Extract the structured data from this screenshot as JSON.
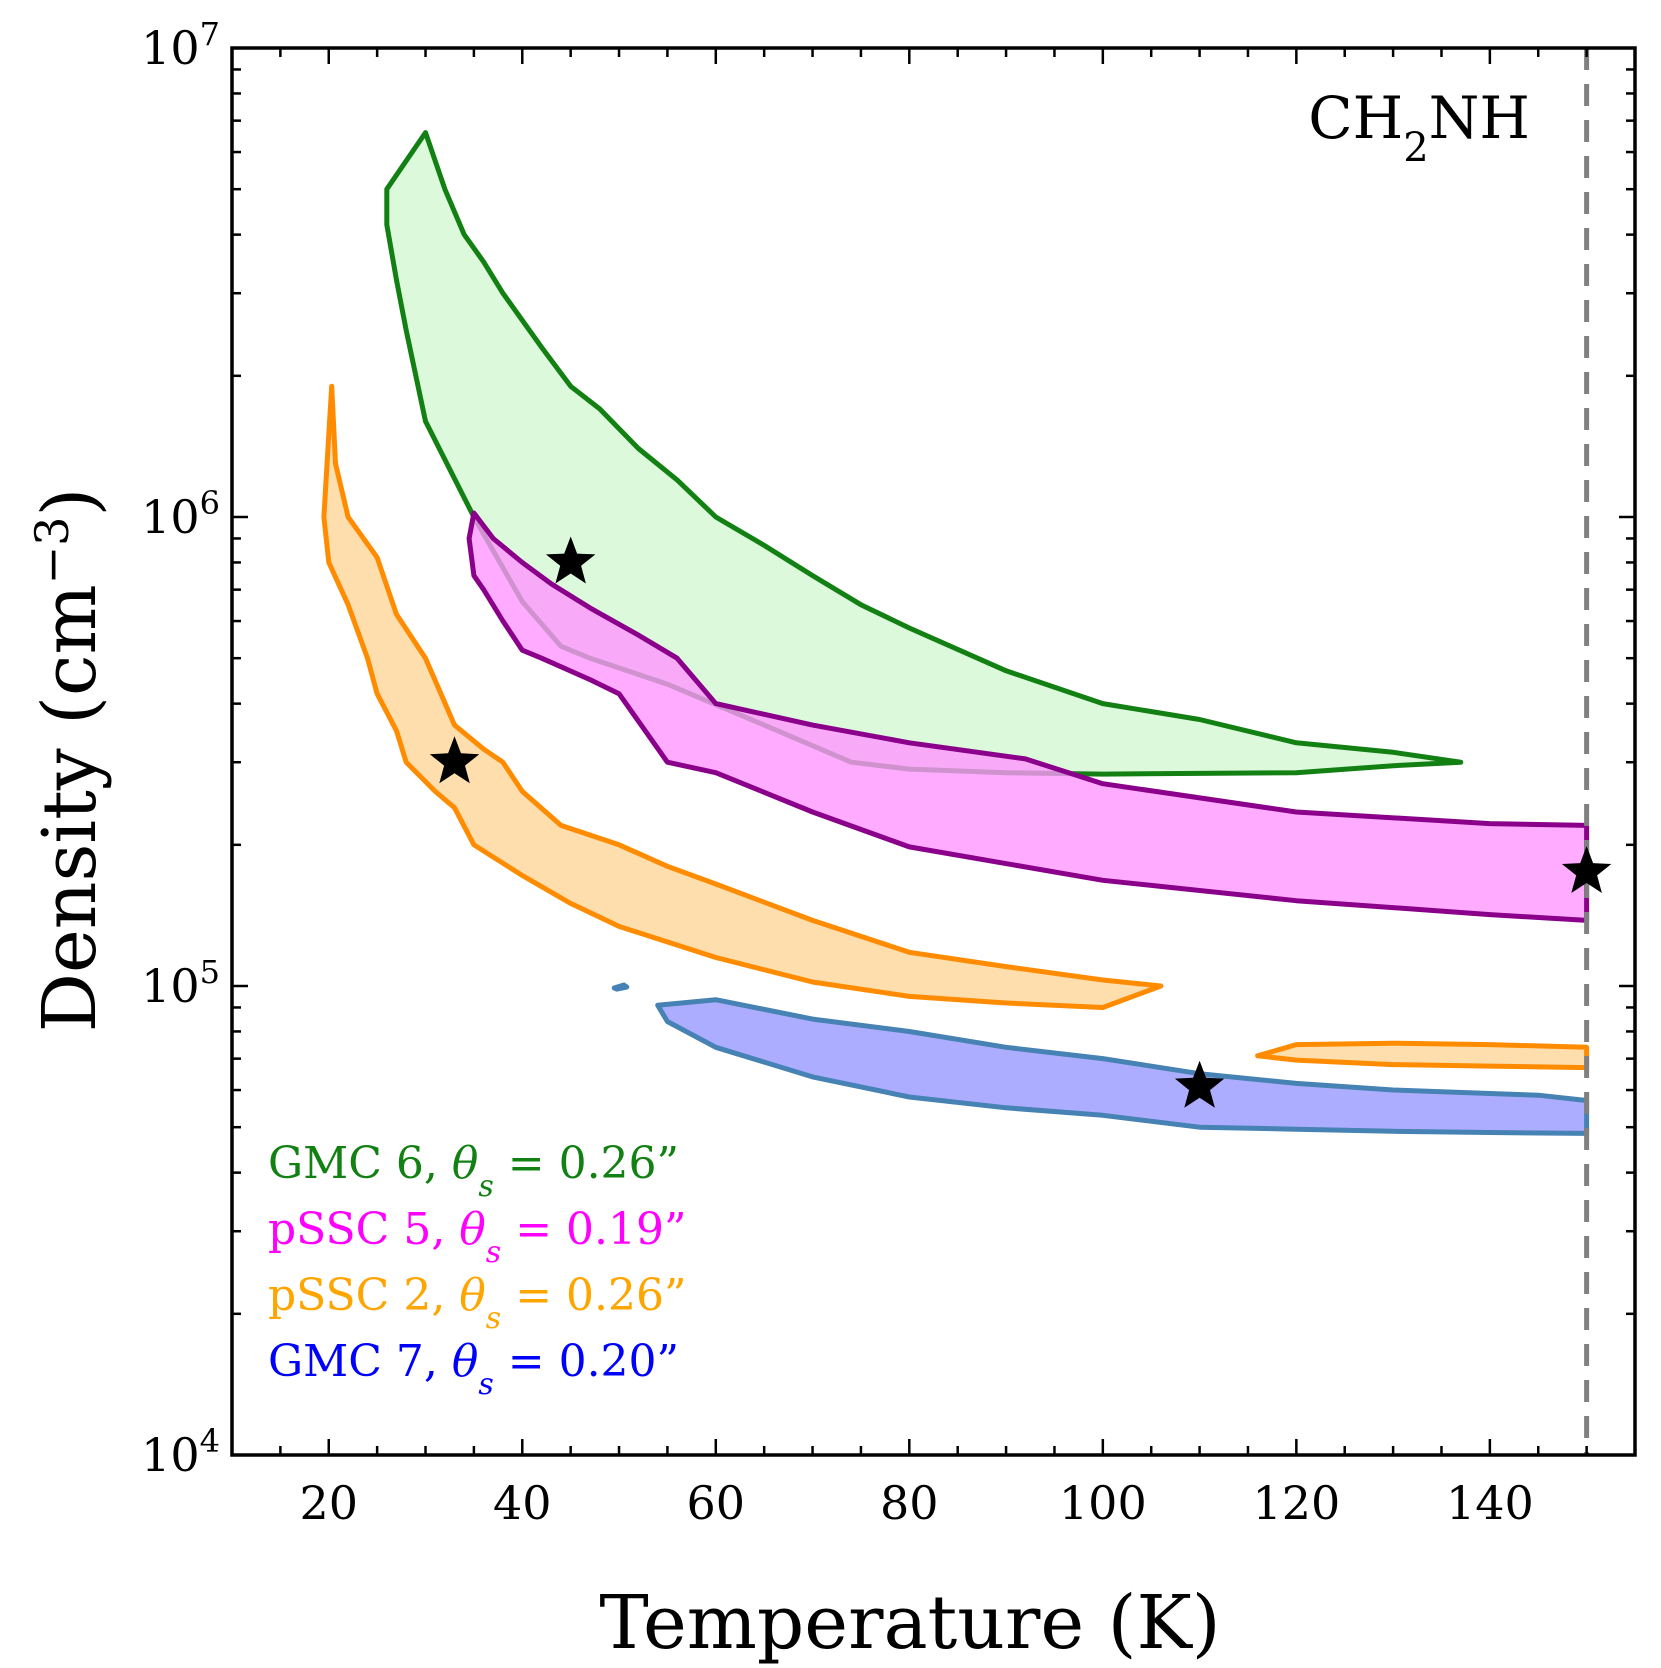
{
  "chart_data": {
    "type": "area",
    "xlabel": "Temperature (K)",
    "ylabel": "Density (cm",
    "ylabel_exp": "−3",
    "ylabel_close": ")",
    "annotation": {
      "base": "CH",
      "sub": "2",
      "rest": "NH"
    },
    "xlim": [
      10,
      155
    ],
    "ylim": [
      10000,
      10000000
    ],
    "yscale": "log",
    "x_ticks": [
      20,
      40,
      60,
      80,
      100,
      120,
      140
    ],
    "x_tick_labels": [
      "20",
      "40",
      "60",
      "80",
      "100",
      "120",
      "140"
    ],
    "y_ticks": [
      {
        "value": 10000,
        "base": "10",
        "exp": "4"
      },
      {
        "value": 100000,
        "base": "10",
        "exp": "5"
      },
      {
        "value": 1000000,
        "base": "10",
        "exp": "6"
      },
      {
        "value": 10000000,
        "base": "10",
        "exp": "7"
      }
    ],
    "vline": {
      "x": 150,
      "color": "#808080",
      "style": "dashed"
    },
    "series": [
      {
        "name": "GMC 6",
        "theta": "θs = 0.26”",
        "stroke": "#138013",
        "fill": "#d3f7d3",
        "stars": [
          [
            45,
            800000
          ]
        ],
        "regions": [
          [
            [
              26,
              5000000
            ],
            [
              30,
              6600000
            ],
            [
              32,
              5000000
            ],
            [
              34,
              4000000
            ],
            [
              36,
              3500000
            ],
            [
              38,
              3000000
            ],
            [
              42,
              2300000
            ],
            [
              45,
              1900000
            ],
            [
              48,
              1700000
            ],
            [
              52,
              1400000
            ],
            [
              56,
              1200000
            ],
            [
              60,
              1000000
            ],
            [
              65,
              870000
            ],
            [
              70,
              750000
            ],
            [
              75,
              650000
            ],
            [
              80,
              580000
            ],
            [
              90,
              470000
            ],
            [
              100,
              400000
            ],
            [
              110,
              370000
            ],
            [
              120,
              330000
            ],
            [
              130,
              315000
            ],
            [
              137,
              300000
            ],
            [
              130,
              295000
            ],
            [
              120,
              285000
            ],
            [
              100,
              283000
            ],
            [
              90,
              285000
            ],
            [
              80,
              290000
            ],
            [
              74,
              300000
            ],
            [
              65,
              360000
            ],
            [
              55,
              440000
            ],
            [
              47,
              500000
            ],
            [
              44,
              530000
            ],
            [
              40,
              660000
            ],
            [
              35,
              1000000
            ],
            [
              30,
              1600000
            ],
            [
              28,
              2500000
            ],
            [
              27,
              3200000
            ],
            [
              26,
              4200000
            ]
          ]
        ]
      },
      {
        "name": "pSSC 5",
        "theta": "θs = 0.19”",
        "stroke": "#8a008a",
        "fill": "#ff96ff",
        "stars": [
          [
            150,
            175000
          ]
        ],
        "regions": [
          [
            [
              34.5,
              900000
            ],
            [
              35,
              1020000
            ],
            [
              37,
              900000
            ],
            [
              40,
              800000
            ],
            [
              43,
              720000
            ],
            [
              47,
              640000
            ],
            [
              52,
              560000
            ],
            [
              56,
              500000
            ],
            [
              60,
              400000
            ],
            [
              70,
              360000
            ],
            [
              80,
              330000
            ],
            [
              92,
              305000
            ],
            [
              100,
              270000
            ],
            [
              120,
              235000
            ],
            [
              140,
              222000
            ],
            [
              150,
              220000
            ],
            [
              150,
              138000
            ],
            [
              140,
              142000
            ],
            [
              120,
              152000
            ],
            [
              100,
              168000
            ],
            [
              80,
              198000
            ],
            [
              70,
              235000
            ],
            [
              60,
              285000
            ],
            [
              55,
              300000
            ],
            [
              50,
              420000
            ],
            [
              47,
              450000
            ],
            [
              42,
              500000
            ],
            [
              40,
              520000
            ],
            [
              38,
              600000
            ],
            [
              36,
              700000
            ],
            [
              35,
              750000
            ]
          ]
        ]
      },
      {
        "name": "pSSC 2",
        "theta": "θs = 0.26”",
        "stroke": "#ff8c00",
        "fill": "#ffd699",
        "stars": [
          [
            33,
            300000
          ]
        ],
        "regions": [
          [
            [
              20,
              1500000
            ],
            [
              20.3,
              1900000
            ],
            [
              20.7,
              1300000
            ],
            [
              22,
              1000000
            ],
            [
              25,
              820000
            ],
            [
              27,
              620000
            ],
            [
              30,
              500000
            ],
            [
              33,
              360000
            ],
            [
              36,
              320000
            ],
            [
              38,
              300000
            ],
            [
              40,
              260000
            ],
            [
              44,
              220000
            ],
            [
              50,
              200000
            ],
            [
              55,
              180000
            ],
            [
              60,
              165000
            ],
            [
              70,
              138000
            ],
            [
              80,
              118000
            ],
            [
              90,
              110000
            ],
            [
              100,
              103000
            ],
            [
              106,
              100000
            ],
            [
              100,
              90000
            ],
            [
              90,
              92000
            ],
            [
              80,
              95000
            ],
            [
              70,
              102000
            ],
            [
              60,
              115000
            ],
            [
              50,
              134000
            ],
            [
              45,
              150000
            ],
            [
              40,
              172000
            ],
            [
              35,
              200000
            ],
            [
              33,
              240000
            ],
            [
              31,
              260000
            ],
            [
              28,
              300000
            ],
            [
              27,
              350000
            ],
            [
              25,
              420000
            ],
            [
              24,
              500000
            ],
            [
              22,
              650000
            ],
            [
              20,
              800000
            ],
            [
              19.5,
              1000000
            ]
          ],
          [
            [
              116,
              71000
            ],
            [
              120,
              75000
            ],
            [
              130,
              75500
            ],
            [
              140,
              75000
            ],
            [
              150,
              74000
            ],
            [
              150,
              67000
            ],
            [
              140,
              67500
            ],
            [
              130,
              68000
            ],
            [
              120,
              69500
            ],
            [
              116,
              71000
            ]
          ]
        ]
      },
      {
        "name": "GMC 7",
        "theta": "θs = 0.20”",
        "stroke": "#4682b4",
        "fill": "#9999ff",
        "stars": [
          [
            110,
            61000
          ]
        ],
        "regions": [
          [
            [
              54,
              91000
            ],
            [
              60,
              93500
            ],
            [
              70,
              85000
            ],
            [
              80,
              80000
            ],
            [
              90,
              74000
            ],
            [
              100,
              70000
            ],
            [
              110,
              65000
            ],
            [
              120,
              62000
            ],
            [
              130,
              60000
            ],
            [
              140,
              59000
            ],
            [
              145,
              58500
            ],
            [
              150,
              57000
            ],
            [
              150,
              48500
            ],
            [
              140,
              48700
            ],
            [
              130,
              49000
            ],
            [
              120,
              49500
            ],
            [
              110,
              50000
            ],
            [
              100,
              53000
            ],
            [
              90,
              55000
            ],
            [
              80,
              58000
            ],
            [
              70,
              64000
            ],
            [
              60,
              74000
            ],
            [
              55,
              84000
            ]
          ],
          [
            [
              49.5,
              99000
            ],
            [
              50.5,
              100500
            ],
            [
              50.8,
              99500
            ],
            [
              49.8,
              98500
            ]
          ]
        ]
      }
    ]
  },
  "legend": [
    {
      "label": "GMC 6, ",
      "theta": "θ",
      "sub": "s",
      "value": " = 0.26”",
      "color": "#138013"
    },
    {
      "label": "pSSC 5, ",
      "theta": "θ",
      "sub": "s",
      "value": " = 0.19”",
      "color": "#ff00ff"
    },
    {
      "label": "pSSC 2, ",
      "theta": "θ",
      "sub": "s",
      "value": " = 0.26”",
      "color": "#ffa500"
    },
    {
      "label": "GMC 7, ",
      "theta": "θ",
      "sub": "s",
      "value": " = 0.20”",
      "color": "#0000ff"
    }
  ]
}
